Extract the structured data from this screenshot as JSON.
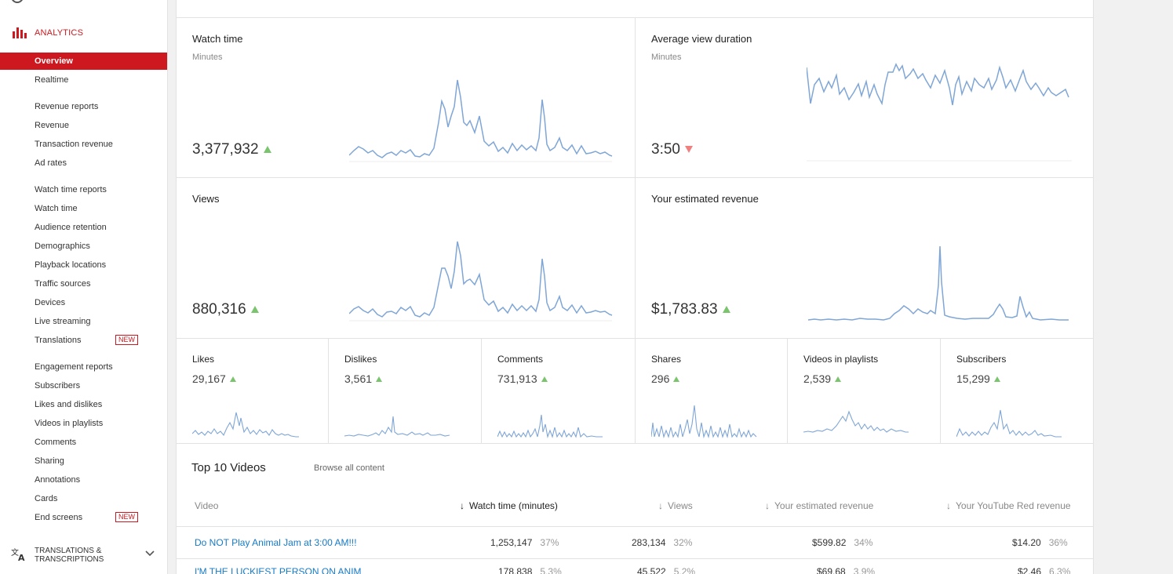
{
  "sidebar": {
    "header": "ANALYTICS",
    "items": [
      {
        "label": "Overview",
        "active": true
      },
      {
        "label": "Realtime"
      },
      {
        "label": "Revenue reports"
      },
      {
        "label": "Revenue"
      },
      {
        "label": "Transaction revenue"
      },
      {
        "label": "Ad rates"
      },
      {
        "label": "Watch time reports"
      },
      {
        "label": "Watch time"
      },
      {
        "label": "Audience retention"
      },
      {
        "label": "Demographics"
      },
      {
        "label": "Playback locations"
      },
      {
        "label": "Traffic sources"
      },
      {
        "label": "Devices"
      },
      {
        "label": "Live streaming"
      },
      {
        "label": "Translations",
        "badge": "NEW"
      },
      {
        "label": "Engagement reports"
      },
      {
        "label": "Subscribers"
      },
      {
        "label": "Likes and dislikes"
      },
      {
        "label": "Videos in playlists"
      },
      {
        "label": "Comments"
      },
      {
        "label": "Sharing"
      },
      {
        "label": "Annotations"
      },
      {
        "label": "Cards"
      },
      {
        "label": "End screens",
        "badge": "NEW"
      }
    ],
    "footer": "TRANSLATIONS & TRANSCRIPTIONS"
  },
  "metrics": {
    "watch_time": {
      "title": "Watch time",
      "sub": "Minutes",
      "value": "3,377,932",
      "trend": "up"
    },
    "avg_duration": {
      "title": "Average view duration",
      "sub": "Minutes",
      "value": "3:50",
      "trend": "down"
    },
    "views": {
      "title": "Views",
      "value": "880,316",
      "trend": "up"
    },
    "revenue": {
      "title": "Your estimated revenue",
      "value": "$1,783.83",
      "trend": "up"
    }
  },
  "mini_metrics": [
    {
      "title": "Likes",
      "value": "29,167"
    },
    {
      "title": "Dislikes",
      "value": "3,561"
    },
    {
      "title": "Comments",
      "value": "731,913"
    },
    {
      "title": "Shares",
      "value": "296"
    },
    {
      "title": "Videos in playlists",
      "value": "2,539"
    },
    {
      "title": "Subscribers",
      "value": "15,299"
    }
  ],
  "top_videos": {
    "title": "Top 10 Videos",
    "browse": "Browse all content",
    "columns": [
      "Video",
      "Watch time (minutes)",
      "Views",
      "Your estimated revenue",
      "Your YouTube Red revenue"
    ],
    "rows": [
      {
        "video": "Do NOT Play Animal Jam at 3:00 AM!!!",
        "watch": "1,253,147",
        "watch_pct": "37%",
        "views": "283,134",
        "views_pct": "32%",
        "rev": "$599.82",
        "rev_pct": "34%",
        "red": "$14.20",
        "red_pct": "36%"
      },
      {
        "video": "I'M THE LUCKIEST PERSON ON ANIM",
        "watch": "178,838",
        "watch_pct": "5.3%",
        "views": "45,522",
        "views_pct": "5.2%",
        "rev": "$69.68",
        "rev_pct": "3.9%",
        "red": "$2.46",
        "red_pct": "6.3%"
      }
    ]
  },
  "colors": {
    "accent": "#cc181e",
    "spark": "#7fa6d6",
    "up": "#7bc46e",
    "down": "#f08080",
    "link": "#167ac6"
  }
}
